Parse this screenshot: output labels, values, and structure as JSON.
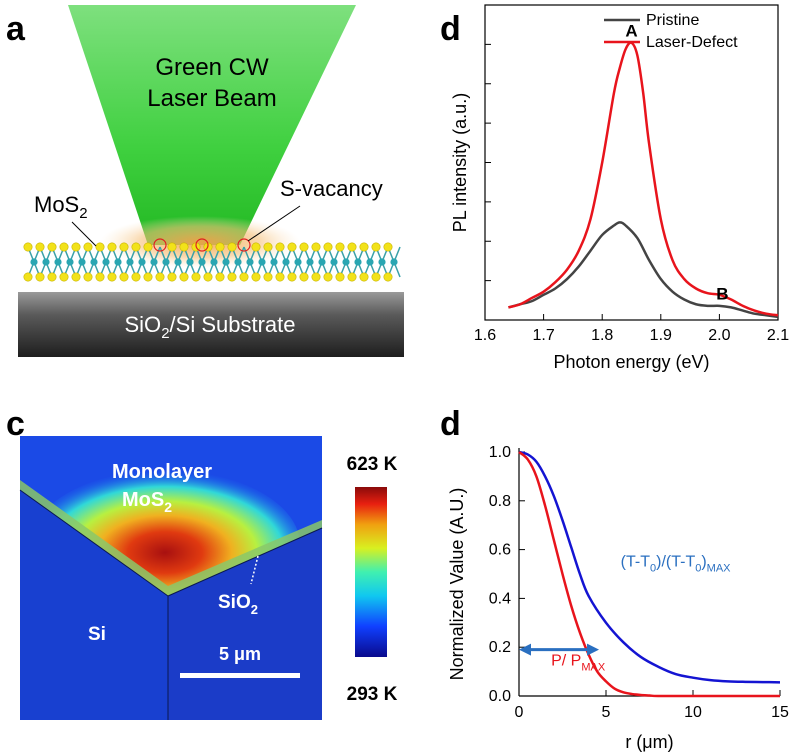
{
  "panels": {
    "a": {
      "label": "a",
      "beam_line1": "Green CW",
      "beam_line2": "Laser Beam",
      "mos2_main": "MoS",
      "mos2_sub": "2",
      "vacancy_label": "S-vacancy",
      "substrate_pre": "SiO",
      "substrate_sub": "2",
      "substrate_post": "/Si Substrate"
    },
    "c": {
      "label": "c",
      "monolayer": "Monolayer",
      "mos2_main": "MoS",
      "mos2_sub": "2",
      "sio2_main": "SiO",
      "sio2_sub": "2",
      "si": "Si",
      "scalebar": "5 μm",
      "cbar_max": "623 K",
      "cbar_min": "293 K"
    },
    "d_top": {
      "label": "d"
    },
    "d_bottom": {
      "label": "d"
    }
  },
  "colors": {
    "pristine": "#444444",
    "laser_defect": "#e8141c",
    "temperature": "#1414d2",
    "power": "#e8141c",
    "annot_blue": "#2a6fc0",
    "beam_green": "#4ad04a"
  },
  "chart_data": [
    {
      "id": "pl-spectrum",
      "type": "line",
      "xlabel": "Photon energy (eV)",
      "ylabel": "PL intensity (a.u.)",
      "xlim": [
        1.6,
        2.1
      ],
      "xticks": [
        "1.6",
        "1.7",
        "1.8",
        "1.9",
        "2.0",
        "2.1"
      ],
      "ylim": [
        0,
        1.0
      ],
      "legend": [
        "Pristine",
        "Laser-Defect"
      ],
      "legend_position": "top-right",
      "annotations": [
        {
          "text": "A",
          "x": 1.85,
          "y": 0.9
        },
        {
          "text": "B",
          "x": 2.005,
          "y": 0.065
        }
      ],
      "series": [
        {
          "name": "Pristine",
          "x": [
            1.64,
            1.66,
            1.68,
            1.7,
            1.72,
            1.74,
            1.76,
            1.78,
            1.8,
            1.82,
            1.83,
            1.84,
            1.86,
            1.88,
            1.9,
            1.92,
            1.94,
            1.96,
            1.98,
            2.0,
            2.02,
            2.04,
            2.06,
            2.08,
            2.1
          ],
          "y": [
            0.04,
            0.05,
            0.06,
            0.08,
            0.1,
            0.13,
            0.17,
            0.22,
            0.27,
            0.3,
            0.31,
            0.3,
            0.26,
            0.19,
            0.13,
            0.09,
            0.065,
            0.05,
            0.045,
            0.045,
            0.04,
            0.03,
            0.02,
            0.015,
            0.01
          ]
        },
        {
          "name": "Laser-Defect",
          "x": [
            1.64,
            1.66,
            1.68,
            1.7,
            1.72,
            1.74,
            1.76,
            1.78,
            1.8,
            1.82,
            1.83,
            1.84,
            1.85,
            1.86,
            1.87,
            1.88,
            1.9,
            1.92,
            1.94,
            1.96,
            1.98,
            2.0,
            2.02,
            2.04,
            2.06,
            2.08,
            2.1
          ],
          "y": [
            0.04,
            0.05,
            0.07,
            0.09,
            0.12,
            0.16,
            0.22,
            0.32,
            0.5,
            0.72,
            0.8,
            0.86,
            0.88,
            0.84,
            0.72,
            0.56,
            0.32,
            0.19,
            0.13,
            0.1,
            0.085,
            0.08,
            0.065,
            0.045,
            0.03,
            0.02,
            0.015
          ]
        }
      ]
    },
    {
      "id": "radial-profile",
      "type": "line",
      "xlabel": "r (μm)",
      "ylabel": "Normalized Value (A.U.)",
      "xlim": [
        0,
        15
      ],
      "xticks": [
        "0",
        "5",
        "10",
        "15"
      ],
      "ylim": [
        0,
        1.0
      ],
      "yticks": [
        "0.0",
        "0.2",
        "0.4",
        "0.6",
        "0.8",
        "1.0"
      ],
      "annotations": [
        {
          "text": "(T-T0)/(T-T0)MAX",
          "x": 9.0,
          "y": 0.53
        },
        {
          "text": "P/ PMAX",
          "x": 3.4,
          "y": 0.15
        }
      ],
      "arrow_range": [
        0,
        4.6
      ],
      "arrow_y": 0.19,
      "series": [
        {
          "name": "(T-T0)/(T-T0)MAX",
          "x": [
            0,
            0.5,
            1,
            1.5,
            2,
            2.5,
            3,
            3.5,
            4,
            5,
            6,
            7,
            8,
            9,
            10,
            11,
            12,
            13,
            14,
            15
          ],
          "y": [
            1.0,
            0.99,
            0.96,
            0.9,
            0.82,
            0.72,
            0.61,
            0.5,
            0.41,
            0.3,
            0.22,
            0.16,
            0.12,
            0.09,
            0.075,
            0.065,
            0.06,
            0.058,
            0.057,
            0.056
          ]
        },
        {
          "name": "P/ PMAX",
          "x": [
            0,
            0.5,
            1,
            1.5,
            2,
            2.5,
            3,
            3.5,
            4,
            4.5,
            5,
            5.5,
            6,
            6.5,
            7,
            7.5,
            8,
            10,
            12,
            15
          ],
          "y": [
            1.0,
            0.97,
            0.9,
            0.78,
            0.64,
            0.5,
            0.37,
            0.26,
            0.17,
            0.1,
            0.06,
            0.03,
            0.015,
            0.008,
            0.004,
            0.002,
            0.0,
            0.0,
            0.0,
            0.0
          ]
        }
      ]
    }
  ]
}
